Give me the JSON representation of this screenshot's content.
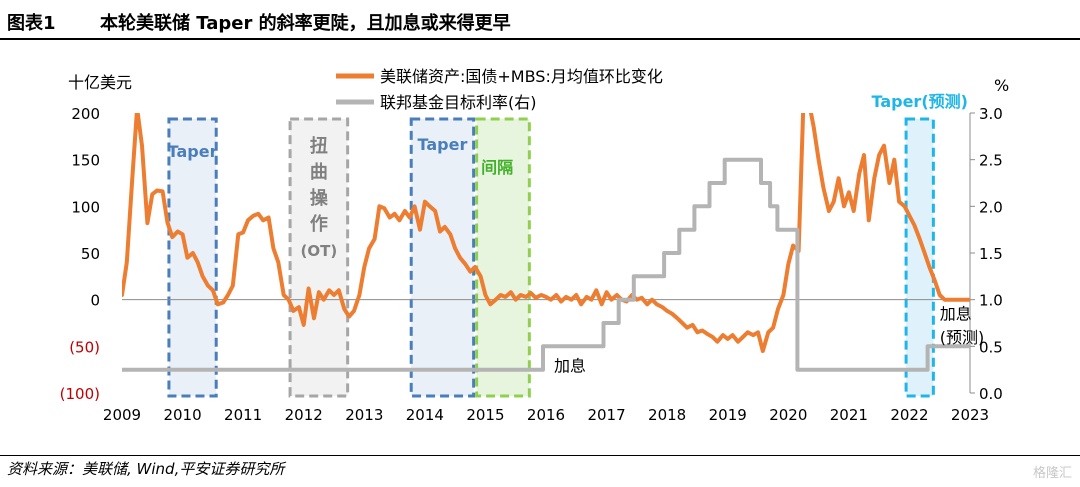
{
  "figure": {
    "label": "图表1",
    "title": "本轮美联储 Taper 的斜率更陡，且加息或来得更早",
    "source": "资料来源：美联储, Wind,平安证券研究所",
    "watermark": "格隆汇"
  },
  "chart_data": {
    "type": "line",
    "left_axis": {
      "unit": "十亿美元",
      "range": [
        -100,
        200
      ],
      "ticks": [
        200,
        150,
        100,
        50,
        0,
        -50,
        -100
      ],
      "tick_labels": [
        "200",
        "150",
        "100",
        "50",
        "0",
        "(50)",
        "(100)"
      ],
      "negative_label_color": "#c00000"
    },
    "right_axis": {
      "unit": "%",
      "range": [
        0.0,
        3.0
      ],
      "ticks": [
        3.0,
        2.5,
        2.0,
        1.5,
        1.0,
        0.5,
        0.0
      ],
      "tick_labels": [
        "3.0",
        "2.5",
        "2.0",
        "1.5",
        "1.0",
        "0.5",
        "0.0"
      ]
    },
    "x_axis": {
      "range": [
        2009,
        2023
      ],
      "tick_labels": [
        "2009",
        "2010",
        "2011",
        "2012",
        "2013",
        "2014",
        "2015",
        "2016",
        "2017",
        "2018",
        "2019",
        "2020",
        "2021",
        "2022",
        "2023"
      ]
    },
    "legend_position": "top-center",
    "series": [
      {
        "name": "美联储资产:国债+MBS:月均值环比变化",
        "axis": "left",
        "color": "#ed7d31",
        "points": [
          [
            2009.0,
            5
          ],
          [
            2009.08,
            40
          ],
          [
            2009.17,
            130
          ],
          [
            2009.25,
            205
          ],
          [
            2009.33,
            165
          ],
          [
            2009.42,
            82
          ],
          [
            2009.5,
            113
          ],
          [
            2009.58,
            117
          ],
          [
            2009.67,
            116
          ],
          [
            2009.75,
            83
          ],
          [
            2009.83,
            67
          ],
          [
            2009.92,
            73
          ],
          [
            2010.0,
            70
          ],
          [
            2010.08,
            45
          ],
          [
            2010.17,
            50
          ],
          [
            2010.25,
            40
          ],
          [
            2010.33,
            25
          ],
          [
            2010.42,
            15
          ],
          [
            2010.5,
            10
          ],
          [
            2010.58,
            -5
          ],
          [
            2010.67,
            -3
          ],
          [
            2010.75,
            5
          ],
          [
            2010.83,
            15
          ],
          [
            2010.92,
            70
          ],
          [
            2011.0,
            72
          ],
          [
            2011.08,
            85
          ],
          [
            2011.17,
            90
          ],
          [
            2011.25,
            92
          ],
          [
            2011.33,
            85
          ],
          [
            2011.42,
            88
          ],
          [
            2011.5,
            55
          ],
          [
            2011.58,
            40
          ],
          [
            2011.67,
            5
          ],
          [
            2011.75,
            0
          ],
          [
            2011.83,
            -12
          ],
          [
            2011.92,
            -8
          ],
          [
            2012.0,
            -27
          ],
          [
            2012.08,
            12
          ],
          [
            2012.17,
            -20
          ],
          [
            2012.25,
            8
          ],
          [
            2012.33,
            0
          ],
          [
            2012.42,
            10
          ],
          [
            2012.5,
            5
          ],
          [
            2012.58,
            10
          ],
          [
            2012.67,
            -10
          ],
          [
            2012.75,
            -18
          ],
          [
            2012.83,
            -12
          ],
          [
            2012.92,
            5
          ],
          [
            2013.0,
            35
          ],
          [
            2013.08,
            55
          ],
          [
            2013.17,
            65
          ],
          [
            2013.25,
            100
          ],
          [
            2013.33,
            98
          ],
          [
            2013.42,
            88
          ],
          [
            2013.5,
            92
          ],
          [
            2013.58,
            85
          ],
          [
            2013.67,
            95
          ],
          [
            2013.75,
            88
          ],
          [
            2013.83,
            100
          ],
          [
            2013.92,
            75
          ],
          [
            2014.0,
            105
          ],
          [
            2014.08,
            100
          ],
          [
            2014.17,
            95
          ],
          [
            2014.25,
            73
          ],
          [
            2014.33,
            78
          ],
          [
            2014.42,
            70
          ],
          [
            2014.5,
            55
          ],
          [
            2014.58,
            45
          ],
          [
            2014.67,
            38
          ],
          [
            2014.75,
            30
          ],
          [
            2014.83,
            35
          ],
          [
            2014.92,
            25
          ],
          [
            2015.0,
            5
          ],
          [
            2015.08,
            -5
          ],
          [
            2015.17,
            0
          ],
          [
            2015.25,
            5
          ],
          [
            2015.33,
            3
          ],
          [
            2015.42,
            8
          ],
          [
            2015.5,
            0
          ],
          [
            2015.58,
            5
          ],
          [
            2015.67,
            3
          ],
          [
            2015.75,
            7
          ],
          [
            2015.83,
            2
          ],
          [
            2015.92,
            5
          ],
          [
            2016.0,
            3
          ],
          [
            2016.08,
            0
          ],
          [
            2016.17,
            5
          ],
          [
            2016.25,
            -2
          ],
          [
            2016.33,
            3
          ],
          [
            2016.42,
            0
          ],
          [
            2016.5,
            5
          ],
          [
            2016.58,
            -5
          ],
          [
            2016.67,
            3
          ],
          [
            2016.75,
            0
          ],
          [
            2016.83,
            10
          ],
          [
            2016.92,
            -5
          ],
          [
            2017.0,
            8
          ],
          [
            2017.08,
            0
          ],
          [
            2017.17,
            5
          ],
          [
            2017.25,
            0
          ],
          [
            2017.33,
            -2
          ],
          [
            2017.42,
            5
          ],
          [
            2017.5,
            0
          ],
          [
            2017.58,
            2
          ],
          [
            2017.67,
            -5
          ],
          [
            2017.75,
            0
          ],
          [
            2017.83,
            -5
          ],
          [
            2017.92,
            -8
          ],
          [
            2018.0,
            -12
          ],
          [
            2018.08,
            -15
          ],
          [
            2018.17,
            -20
          ],
          [
            2018.25,
            -25
          ],
          [
            2018.33,
            -30
          ],
          [
            2018.42,
            -27
          ],
          [
            2018.5,
            -35
          ],
          [
            2018.58,
            -33
          ],
          [
            2018.67,
            -37
          ],
          [
            2018.75,
            -40
          ],
          [
            2018.83,
            -45
          ],
          [
            2018.92,
            -38
          ],
          [
            2019.0,
            -42
          ],
          [
            2019.08,
            -38
          ],
          [
            2019.17,
            -45
          ],
          [
            2019.25,
            -40
          ],
          [
            2019.33,
            -35
          ],
          [
            2019.42,
            -38
          ],
          [
            2019.5,
            -35
          ],
          [
            2019.58,
            -55
          ],
          [
            2019.67,
            -35
          ],
          [
            2019.75,
            -30
          ],
          [
            2019.83,
            -10
          ],
          [
            2019.92,
            5
          ],
          [
            2020.0,
            38
          ],
          [
            2020.08,
            58
          ],
          [
            2020.17,
            52
          ],
          [
            2020.25,
            210
          ],
          [
            2020.33,
            215
          ],
          [
            2020.42,
            185
          ],
          [
            2020.5,
            150
          ],
          [
            2020.58,
            120
          ],
          [
            2020.67,
            95
          ],
          [
            2020.75,
            105
          ],
          [
            2020.83,
            130
          ],
          [
            2020.92,
            100
          ],
          [
            2021.0,
            115
          ],
          [
            2021.08,
            95
          ],
          [
            2021.17,
            135
          ],
          [
            2021.25,
            155
          ],
          [
            2021.33,
            85
          ],
          [
            2021.42,
            130
          ],
          [
            2021.5,
            155
          ],
          [
            2021.58,
            165
          ],
          [
            2021.67,
            125
          ],
          [
            2021.75,
            150
          ],
          [
            2021.83,
            105
          ],
          [
            2021.92,
            100
          ],
          [
            2022.0,
            90
          ],
          [
            2022.08,
            80
          ],
          [
            2022.17,
            65
          ],
          [
            2022.25,
            50
          ],
          [
            2022.33,
            35
          ],
          [
            2022.42,
            20
          ],
          [
            2022.5,
            5
          ],
          [
            2022.58,
            0
          ],
          [
            2022.67,
            0
          ],
          [
            2022.75,
            0
          ],
          [
            2022.83,
            0
          ],
          [
            2022.92,
            0
          ],
          [
            2023.0,
            0
          ]
        ]
      },
      {
        "name": "联邦基金目标利率(右)",
        "axis": "right",
        "color": "#b4b4b4",
        "points": [
          [
            2009.0,
            0.25
          ],
          [
            2015.95,
            0.25
          ],
          [
            2015.95,
            0.5
          ],
          [
            2016.95,
            0.5
          ],
          [
            2016.95,
            0.75
          ],
          [
            2017.2,
            0.75
          ],
          [
            2017.2,
            1.0
          ],
          [
            2017.45,
            1.0
          ],
          [
            2017.45,
            1.25
          ],
          [
            2017.95,
            1.25
          ],
          [
            2017.95,
            1.5
          ],
          [
            2018.2,
            1.5
          ],
          [
            2018.2,
            1.75
          ],
          [
            2018.45,
            1.75
          ],
          [
            2018.45,
            2.0
          ],
          [
            2018.7,
            2.0
          ],
          [
            2018.7,
            2.25
          ],
          [
            2018.95,
            2.25
          ],
          [
            2018.95,
            2.5
          ],
          [
            2019.55,
            2.5
          ],
          [
            2019.55,
            2.25
          ],
          [
            2019.7,
            2.25
          ],
          [
            2019.7,
            2.0
          ],
          [
            2019.82,
            2.0
          ],
          [
            2019.82,
            1.75
          ],
          [
            2020.15,
            1.75
          ],
          [
            2020.15,
            0.25
          ],
          [
            2022.3,
            0.25
          ],
          [
            2022.3,
            0.5
          ],
          [
            2023.0,
            0.5
          ]
        ]
      }
    ],
    "shaded_periods": [
      {
        "label": "Taper",
        "start": 2009.75,
        "end": 2010.58,
        "fill": "#eaf0f8",
        "stroke": "#4a7ebb",
        "label_color": "#4a7ebb",
        "label_layout": "horizontal"
      },
      {
        "label": "扭曲操作(OT)",
        "chars": [
          "扭",
          "曲",
          "操",
          "作",
          "(OT)"
        ],
        "start": 2011.75,
        "end": 2012.75,
        "fill": "#f2f2f2",
        "stroke": "#a6a6a6",
        "label_color": "#808080",
        "label_layout": "vertical"
      },
      {
        "label": "Taper",
        "start": 2013.75,
        "end": 2014.83,
        "fill": "#eaf0f8",
        "stroke": "#4a7ebb",
        "label_color": "#4a7ebb",
        "label_layout": "horizontal"
      },
      {
        "label": "间隔",
        "start": 2014.83,
        "end": 2015.75,
        "fill": "#e7f5df",
        "stroke": "#8fd14f",
        "label_color": "#43b02a",
        "label_layout": "horizontal"
      },
      {
        "label": "Taper(预测)",
        "start": 2021.92,
        "end": 2022.42,
        "fill": "#dff2fb",
        "stroke": "#20b5e8",
        "label_color": "#20b5e8",
        "label_layout": "horizontal"
      }
    ],
    "annotations": [
      {
        "text": "加息",
        "x": 2016.0,
        "y_right": 0.25,
        "color": "#000000"
      },
      {
        "text": "加息",
        "x": 2022.5,
        "y_right": 0.85,
        "color": "#000000"
      },
      {
        "text": "(预测)",
        "x": 2022.5,
        "y_right": 0.6,
        "color": "#000000"
      }
    ]
  }
}
